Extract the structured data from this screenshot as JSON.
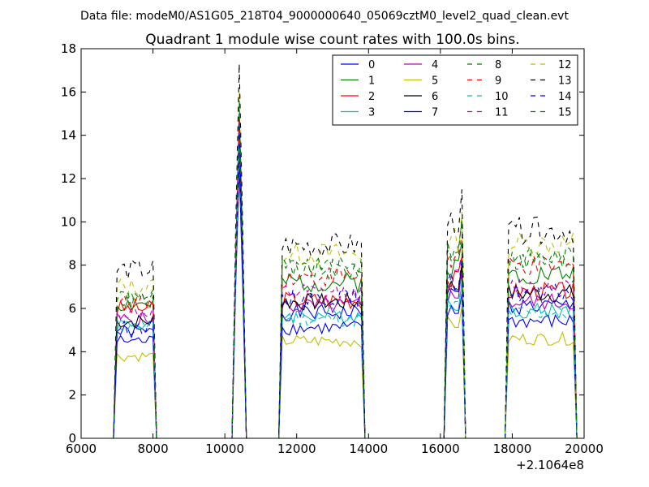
{
  "chart_data": {
    "type": "line",
    "suptitle": "Data file: modeM0/AS1G05_218T04_9000000640_05069cztM0_level2_quad_clean.evt",
    "title": "Quadrant 1 module wise count rates with 100.0s bins.",
    "xlabel": "",
    "ylabel": "",
    "x_offset_label": "+2.1064e8",
    "xlim": [
      6000,
      20000
    ],
    "ylim": [
      0,
      18
    ],
    "xticks": [
      6000,
      8000,
      10000,
      12000,
      14000,
      16000,
      18000,
      20000
    ],
    "xtick_labels": [
      "6000",
      "8000",
      "10000",
      "12000",
      "14000",
      "16000",
      "18000",
      "20000"
    ],
    "yticks": [
      0,
      2,
      4,
      6,
      8,
      10,
      12,
      14,
      16,
      18
    ],
    "ytick_labels": [
      "0",
      "2",
      "4",
      "6",
      "8",
      "10",
      "12",
      "14",
      "16",
      "18"
    ],
    "legend_position": "top-right",
    "segments": [
      {
        "start": 7000,
        "end": 8000,
        "n": 11
      },
      {
        "start": 10300,
        "end": 10500,
        "n": 3
      },
      {
        "start": 11600,
        "end": 13800,
        "n": 23
      },
      {
        "start": 16200,
        "end": 16600,
        "n": 5
      },
      {
        "start": 17900,
        "end": 19700,
        "n": 19
      }
    ],
    "series": [
      {
        "name": "0",
        "color": "#0000ff",
        "dash": false,
        "levels": [
          4.9,
          15.0,
          5.8,
          6.6,
          6.1
        ]
      },
      {
        "name": "1",
        "color": "#008000",
        "dash": false,
        "levels": [
          6.2,
          14.2,
          7.2,
          7.9,
          7.6
        ]
      },
      {
        "name": "2",
        "color": "#ff0000",
        "dash": false,
        "levels": [
          6.0,
          14.0,
          6.4,
          7.3,
          6.8
        ]
      },
      {
        "name": "3",
        "color": "#00bfbf",
        "dash": false,
        "levels": [
          5.3,
          13.6,
          5.7,
          6.3,
          5.9
        ]
      },
      {
        "name": "4",
        "color": "#bf00bf",
        "dash": false,
        "levels": [
          5.5,
          13.5,
          6.1,
          6.8,
          6.3
        ]
      },
      {
        "name": "5",
        "color": "#bfbf00",
        "dash": false,
        "levels": [
          3.8,
          12.5,
          4.5,
          5.3,
          4.6
        ]
      },
      {
        "name": "6",
        "color": "#000000",
        "dash": false,
        "levels": [
          5.4,
          13.6,
          6.3,
          7.0,
          6.7
        ]
      },
      {
        "name": "7",
        "color": "#0000ff",
        "dash": false,
        "levels": [
          4.5,
          12.6,
          5.1,
          5.8,
          5.4
        ]
      },
      {
        "name": "8",
        "color": "#008000",
        "dash": true,
        "levels": [
          6.6,
          15.2,
          7.8,
          8.7,
          8.4
        ]
      },
      {
        "name": "9",
        "color": "#ff0000",
        "dash": true,
        "levels": [
          6.3,
          14.8,
          7.5,
          8.2,
          7.9
        ]
      },
      {
        "name": "10",
        "color": "#00bfbf",
        "dash": true,
        "levels": [
          5.2,
          13.6,
          5.5,
          6.1,
          5.8
        ]
      },
      {
        "name": "11",
        "color": "#bf00bf",
        "dash": true,
        "levels": [
          5.8,
          14.4,
          6.7,
          7.4,
          7.0
        ]
      },
      {
        "name": "12",
        "color": "#bfbf00",
        "dash": true,
        "levels": [
          7.0,
          16.0,
          8.5,
          9.1,
          9.0
        ]
      },
      {
        "name": "13",
        "color": "#000000",
        "dash": true,
        "levels": [
          7.8,
          17.3,
          8.9,
          10.0,
          9.6
        ]
      },
      {
        "name": "14",
        "color": "#0000ff",
        "dash": true,
        "levels": [
          5.1,
          14.6,
          6.5,
          7.2,
          6.7
        ]
      },
      {
        "name": "15",
        "color": "#008000",
        "dash": true,
        "levels": [
          6.4,
          15.6,
          7.9,
          8.8,
          8.2
        ]
      }
    ]
  }
}
